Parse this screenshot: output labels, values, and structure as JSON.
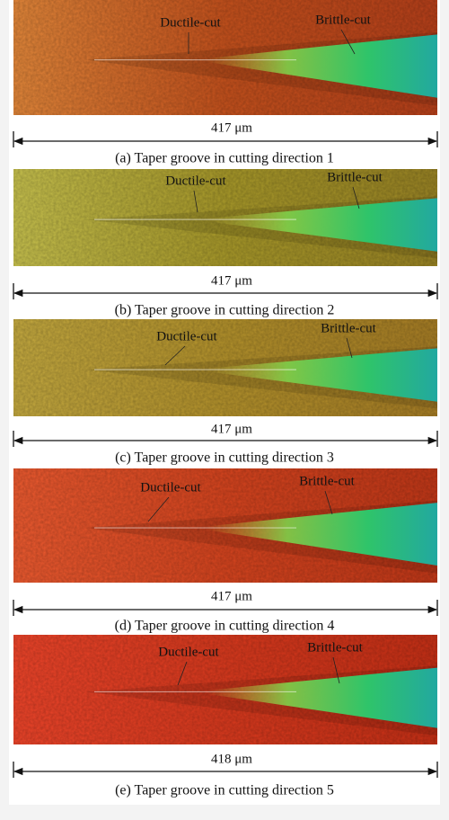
{
  "panels": [
    {
      "ductile_label": "Ductile-cut",
      "brittle_label": "Brittle-cut",
      "scale_label": "417 μm",
      "caption": "(a) Taper groove in cutting direction 1"
    },
    {
      "ductile_label": "Ductile-cut",
      "brittle_label": "Brittle-cut",
      "scale_label": "417 μm",
      "caption": "(b) Taper groove in cutting direction 2"
    },
    {
      "ductile_label": "Ductile-cut",
      "brittle_label": "Brittle-cut",
      "scale_label": "417 μm",
      "caption": "(c) Taper groove in cutting direction 3"
    },
    {
      "ductile_label": "Ductile-cut",
      "brittle_label": "Brittle-cut",
      "scale_label": "417 μm",
      "caption": "(d) Taper groove in cutting direction 4"
    },
    {
      "ductile_label": "Ductile-cut",
      "brittle_label": "Brittle-cut",
      "scale_label": "418 μm",
      "caption": "(e) Taper groove in cutting direction 5"
    }
  ]
}
